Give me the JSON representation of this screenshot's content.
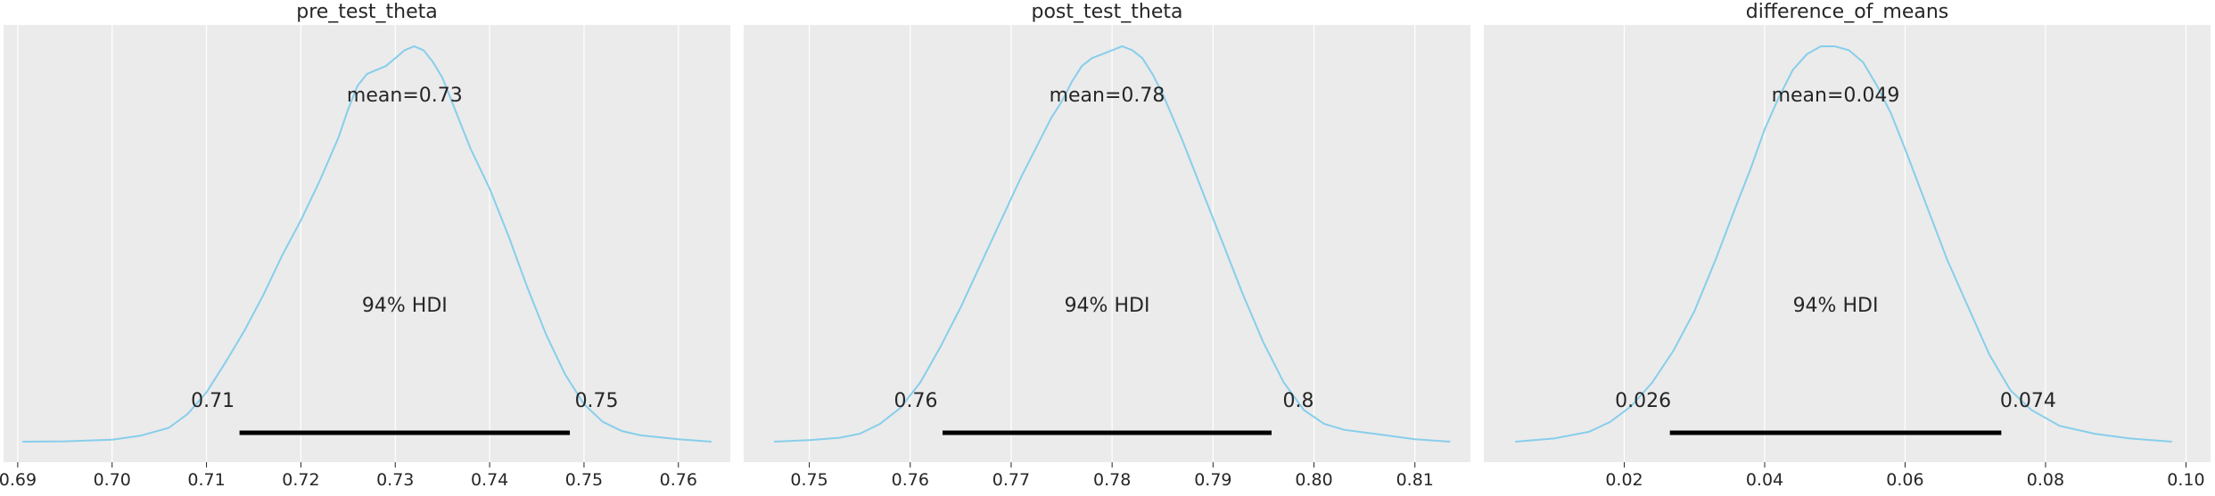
{
  "line_color": "#87ceeb",
  "chart_data": [
    {
      "type": "line",
      "title": "pre_test_theta",
      "mean_label": "mean=0.73",
      "hdi_label": "94% HDI",
      "hdi": {
        "low": 0.7135,
        "high": 0.7485,
        "low_label": "0.71",
        "high_label": "0.75"
      },
      "xlim": [
        0.6885,
        0.7655
      ],
      "xticks": [
        0.69,
        0.7,
        0.71,
        0.72,
        0.73,
        0.74,
        0.75,
        0.76
      ],
      "xtick_labels": [
        "0.69",
        "0.70",
        "0.71",
        "0.72",
        "0.73",
        "0.74",
        "0.75",
        "0.76"
      ],
      "density": {
        "x": [
          0.6905,
          0.695,
          0.7,
          0.703,
          0.706,
          0.708,
          0.71,
          0.712,
          0.714,
          0.716,
          0.718,
          0.72,
          0.722,
          0.724,
          0.725,
          0.726,
          0.727,
          0.728,
          0.729,
          0.73,
          0.731,
          0.732,
          0.733,
          0.734,
          0.735,
          0.736,
          0.737,
          0.738,
          0.74,
          0.742,
          0.744,
          0.746,
          0.748,
          0.75,
          0.752,
          0.754,
          0.756,
          0.76,
          0.7635
        ],
        "y": [
          0.0,
          0.001,
          0.005,
          0.015,
          0.035,
          0.07,
          0.125,
          0.2,
          0.28,
          0.37,
          0.47,
          0.56,
          0.66,
          0.77,
          0.84,
          0.9,
          0.93,
          0.94,
          0.95,
          0.97,
          0.99,
          1.0,
          0.99,
          0.96,
          0.92,
          0.86,
          0.8,
          0.74,
          0.64,
          0.52,
          0.39,
          0.27,
          0.17,
          0.095,
          0.05,
          0.027,
          0.016,
          0.006,
          0.0
        ]
      }
    },
    {
      "type": "line",
      "title": "post_test_theta",
      "mean_label": "mean=0.78",
      "hdi_label": "94% HDI",
      "hdi": {
        "low": 0.7632,
        "high": 0.7958,
        "low_label": "0.76",
        "high_label": "0.8"
      },
      "xlim": [
        0.7435,
        0.8155
      ],
      "xticks": [
        0.75,
        0.76,
        0.77,
        0.78,
        0.79,
        0.8,
        0.81
      ],
      "xtick_labels": [
        "0.75",
        "0.76",
        "0.77",
        "0.78",
        "0.79",
        "0.80",
        "0.81"
      ],
      "density": {
        "x": [
          0.7465,
          0.75,
          0.753,
          0.755,
          0.757,
          0.759,
          0.761,
          0.763,
          0.765,
          0.767,
          0.769,
          0.771,
          0.773,
          0.774,
          0.775,
          0.776,
          0.777,
          0.778,
          0.779,
          0.78,
          0.781,
          0.782,
          0.783,
          0.784,
          0.785,
          0.786,
          0.787,
          0.789,
          0.791,
          0.793,
          0.795,
          0.797,
          0.799,
          0.801,
          0.803,
          0.806,
          0.81,
          0.8135
        ],
        "y": [
          0.0,
          0.004,
          0.01,
          0.02,
          0.045,
          0.085,
          0.15,
          0.24,
          0.34,
          0.45,
          0.56,
          0.67,
          0.77,
          0.82,
          0.86,
          0.91,
          0.95,
          0.97,
          0.98,
          0.99,
          1.0,
          0.99,
          0.97,
          0.93,
          0.88,
          0.82,
          0.76,
          0.63,
          0.5,
          0.37,
          0.25,
          0.15,
          0.08,
          0.045,
          0.03,
          0.02,
          0.006,
          0.0
        ]
      }
    },
    {
      "type": "line",
      "title": "difference_of_means",
      "mean_label": "mean=0.049",
      "hdi_label": "94% HDI",
      "hdi": {
        "low": 0.0265,
        "high": 0.0737,
        "low_label": "0.026",
        "high_label": "0.074"
      },
      "xlim": [
        0.0,
        0.1035
      ],
      "xticks": [
        0.02,
        0.04,
        0.06,
        0.08,
        0.1
      ],
      "xtick_labels": [
        "0.02",
        "0.04",
        "0.06",
        "0.08",
        "0.10"
      ],
      "density": {
        "x": [
          0.0045,
          0.01,
          0.015,
          0.018,
          0.021,
          0.024,
          0.027,
          0.03,
          0.033,
          0.036,
          0.038,
          0.04,
          0.042,
          0.044,
          0.046,
          0.048,
          0.05,
          0.052,
          0.054,
          0.056,
          0.058,
          0.06,
          0.063,
          0.066,
          0.069,
          0.072,
          0.075,
          0.078,
          0.082,
          0.087,
          0.092,
          0.098
        ],
        "y": [
          0.0,
          0.008,
          0.025,
          0.05,
          0.09,
          0.15,
          0.23,
          0.33,
          0.46,
          0.6,
          0.69,
          0.79,
          0.87,
          0.94,
          0.98,
          1.0,
          1.0,
          0.99,
          0.96,
          0.9,
          0.83,
          0.74,
          0.6,
          0.46,
          0.34,
          0.22,
          0.13,
          0.08,
          0.04,
          0.02,
          0.008,
          0.0
        ]
      }
    }
  ]
}
